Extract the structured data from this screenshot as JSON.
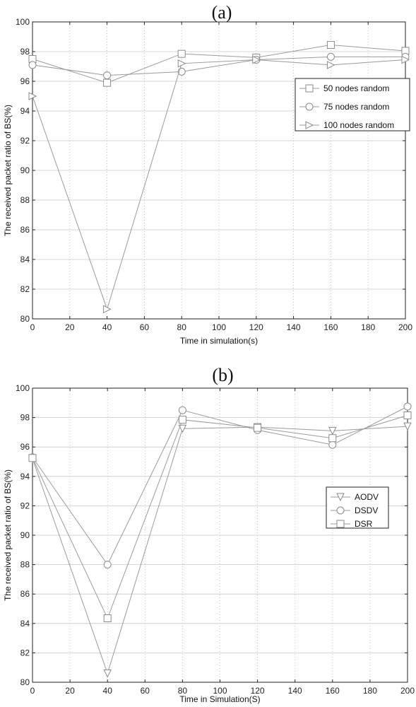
{
  "chart_data": [
    {
      "type": "line",
      "title": "(a)",
      "xlabel": "Time in simulation(s)",
      "ylabel": "The received packet ratio of BS(%)",
      "x": [
        0,
        40,
        80,
        120,
        160,
        200
      ],
      "xlim": [
        0,
        200
      ],
      "ylim": [
        80,
        100
      ],
      "xticks": [
        0,
        20,
        40,
        60,
        80,
        100,
        120,
        140,
        160,
        180,
        200
      ],
      "yticks": [
        80,
        82,
        84,
        86,
        88,
        90,
        92,
        94,
        96,
        98,
        100
      ],
      "grid": true,
      "legend_position": "right",
      "series": [
        {
          "name": "50 nodes random",
          "marker": "square",
          "values": [
            97.5,
            95.9,
            97.85,
            97.6,
            98.45,
            98.05
          ]
        },
        {
          "name": "75 nodes random",
          "marker": "circle",
          "values": [
            97.1,
            96.4,
            96.65,
            97.45,
            97.65,
            97.65
          ]
        },
        {
          "name": "100 nodes random",
          "marker": "triangle-right",
          "values": [
            95.0,
            80.65,
            97.2,
            97.45,
            97.1,
            97.45
          ]
        }
      ]
    },
    {
      "type": "line",
      "title": "(b)",
      "xlabel": "Time in Simulation(S)",
      "ylabel": "The received packet ratio of BS(%)",
      "x": [
        0,
        40,
        80,
        120,
        160,
        200
      ],
      "xlim": [
        0,
        200
      ],
      "ylim": [
        80,
        100
      ],
      "xticks": [
        0,
        20,
        40,
        60,
        80,
        100,
        120,
        140,
        160,
        180,
        200
      ],
      "yticks": [
        80,
        82,
        84,
        86,
        88,
        90,
        92,
        94,
        96,
        98,
        100
      ],
      "grid": true,
      "legend_position": "right",
      "series": [
        {
          "name": "AODV",
          "marker": "triangle-down",
          "values": [
            95.2,
            80.6,
            97.25,
            97.35,
            97.1,
            97.4
          ]
        },
        {
          "name": "DSDV",
          "marker": "circle",
          "values": [
            95.3,
            88.0,
            98.5,
            97.15,
            96.15,
            98.75
          ]
        },
        {
          "name": "DSR",
          "marker": "square",
          "values": [
            95.25,
            84.35,
            97.85,
            97.3,
            96.6,
            98.15
          ]
        }
      ]
    }
  ]
}
